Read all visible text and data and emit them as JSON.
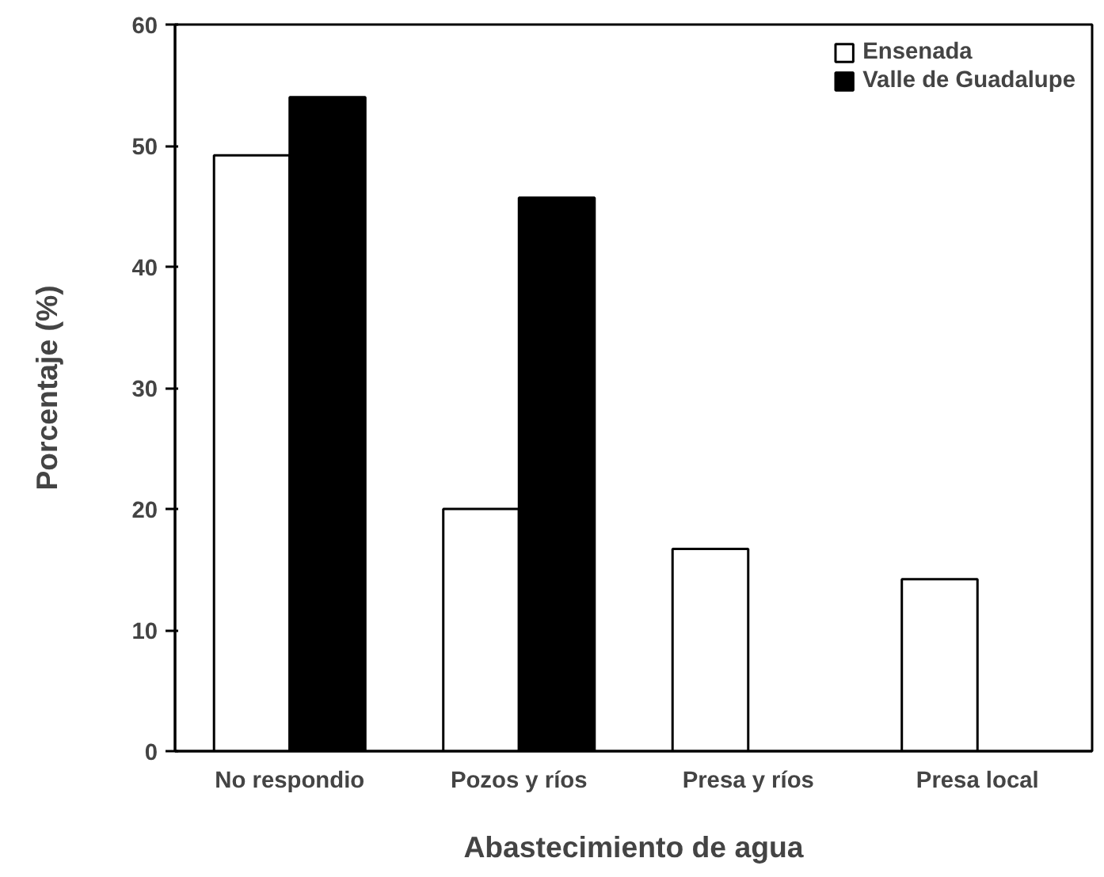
{
  "chart_data": {
    "type": "bar",
    "xlabel": "Abastecimiento de agua",
    "ylabel": "Porcentaje (%)",
    "categories": [
      "No respondio",
      "Pozos y ríos",
      "Presa y ríos",
      "Presa local"
    ],
    "series": [
      {
        "name": "Ensenada",
        "color": "#ffffff",
        "values": [
          49.2,
          20,
          16.7,
          14.2
        ]
      },
      {
        "name": "Valle de Guadalupe",
        "color": "#000000",
        "values": [
          54,
          45.7,
          null,
          null
        ]
      }
    ],
    "ylim": [
      0,
      60
    ],
    "yticks": [
      0,
      10,
      20,
      30,
      40,
      50,
      60
    ],
    "grid": false,
    "legend": "top right"
  }
}
